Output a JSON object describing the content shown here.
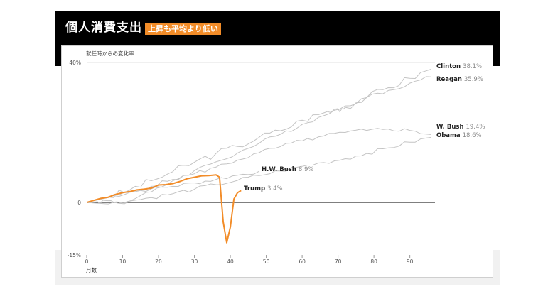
{
  "header": {
    "title": "個人消費支出",
    "badge": "上昇も平均より低い"
  },
  "colors": {
    "header_bg": "#000000",
    "badge_bg": "#f28c28",
    "highlight": "#f28c28",
    "other_series": "#c4c4c4"
  },
  "chart_data": {
    "type": "line",
    "ylabel": "就任時からの変化率",
    "xlabel": "月数",
    "ylim": [
      -15,
      40
    ],
    "xlim": [
      0,
      97
    ],
    "y_ticks": [
      {
        "value": 40,
        "label": "40%"
      },
      {
        "value": 0,
        "label": "0"
      },
      {
        "value": -15,
        "label": "-15%"
      }
    ],
    "x_ticks": [
      0,
      10,
      20,
      30,
      40,
      50,
      60,
      70,
      80,
      90
    ],
    "grid": false,
    "legend": "direct labels at line ends",
    "series": [
      {
        "name": "Clinton",
        "label_value": "38.1%",
        "highlight": false,
        "x": [
          0,
          6,
          12,
          18,
          24,
          30,
          36,
          42,
          48,
          54,
          60,
          66,
          70,
          72,
          78,
          84,
          90,
          96
        ],
        "y": [
          0,
          1.5,
          3.6,
          6.2,
          8.8,
          11.5,
          14.0,
          16.0,
          18.6,
          20.5,
          23.5,
          25.6,
          26.8,
          27.2,
          30.0,
          32.8,
          35.5,
          38.1
        ]
      },
      {
        "name": "Reagan",
        "label_value": "35.9%",
        "highlight": false,
        "x": [
          0,
          3,
          6,
          9,
          12,
          18,
          24,
          30,
          36,
          42,
          48,
          54,
          60,
          66,
          72,
          78,
          84,
          90,
          96
        ],
        "y": [
          0,
          0.2,
          0.5,
          0.1,
          0.4,
          3.0,
          6.2,
          9.1,
          11.6,
          14.1,
          16.9,
          19.5,
          22.3,
          24.8,
          27.6,
          30.0,
          32.0,
          34.1,
          35.9
        ]
      },
      {
        "name": "W. Bush",
        "label_value": "19.4%",
        "highlight": false,
        "x": [
          0,
          6,
          12,
          18,
          24,
          30,
          36,
          42,
          48,
          54,
          60,
          66,
          72,
          78,
          84,
          90,
          96
        ],
        "y": [
          0,
          1.4,
          2.9,
          4.6,
          6.6,
          8.2,
          10.1,
          12.1,
          14.2,
          16.0,
          17.6,
          19.0,
          20.0,
          20.6,
          21.0,
          20.6,
          19.4
        ]
      },
      {
        "name": "Obama",
        "label_value": "18.6%",
        "highlight": false,
        "x": [
          0,
          6,
          12,
          18,
          24,
          30,
          36,
          42,
          48,
          54,
          60,
          66,
          72,
          78,
          84,
          90,
          96
        ],
        "y": [
          0,
          -0.4,
          0.4,
          1.4,
          2.5,
          3.8,
          5.1,
          6.3,
          7.7,
          9.0,
          10.3,
          11.4,
          12.5,
          14.0,
          15.6,
          17.2,
          18.6
        ]
      },
      {
        "name": "H.W. Bush",
        "label_value": "8.9%",
        "highlight": false,
        "x": [
          0,
          6,
          12,
          18,
          24,
          30,
          36,
          42,
          48
        ],
        "y": [
          0,
          1.5,
          2.9,
          3.9,
          4.6,
          5.6,
          6.6,
          7.8,
          8.9
        ]
      },
      {
        "name": "Trump",
        "label_value": "3.4%",
        "highlight": true,
        "x": [
          0,
          2,
          4,
          6,
          8,
          10,
          12,
          14,
          16,
          18,
          20,
          22,
          24,
          26,
          28,
          30,
          32,
          34,
          36,
          37,
          38,
          39,
          40,
          41,
          42,
          43
        ],
        "y": [
          0,
          0.6,
          1.2,
          1.5,
          2.3,
          2.8,
          3.1,
          3.6,
          3.8,
          4.1,
          5.0,
          5.1,
          5.4,
          6.0,
          6.8,
          7.2,
          7.6,
          7.7,
          7.9,
          7.2,
          -5.5,
          -11.5,
          -7.0,
          1.0,
          2.8,
          3.4
        ]
      }
    ]
  }
}
